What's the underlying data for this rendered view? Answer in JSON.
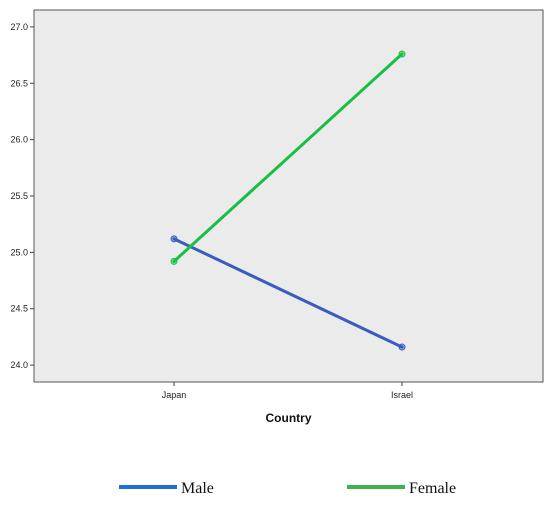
{
  "chart_data": {
    "type": "line",
    "title": "",
    "xlabel": "Country",
    "ylabel": "",
    "categories": [
      "Japan",
      "Israel"
    ],
    "ylim": [
      23.85,
      27.15
    ],
    "yticks": [
      24.0,
      24.5,
      25.0,
      25.5,
      26.0,
      26.5,
      27.0
    ],
    "ytick_labels": [
      "24.0",
      "24.5",
      "25.0",
      "25.5",
      "26.0",
      "26.5",
      "27.0"
    ],
    "grid": false,
    "legend_position": "bottom",
    "plot_background": "#ebebeb",
    "series": [
      {
        "name": "Male",
        "values": [
          25.12,
          24.16
        ],
        "color": "#3a5cbf",
        "legend_color": "#1f6fd0"
      },
      {
        "name": "Female",
        "values": [
          24.92,
          26.76
        ],
        "color": "#17c043",
        "legend_color": "#3cb44b"
      }
    ]
  }
}
